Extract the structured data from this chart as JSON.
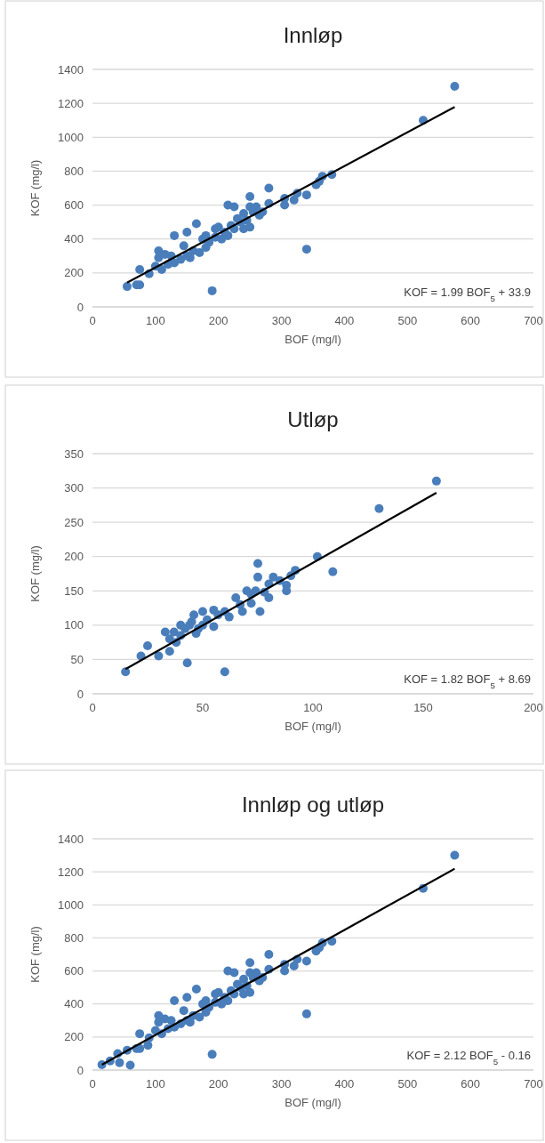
{
  "chart_data": [
    {
      "type": "scatter",
      "title": "Innløp",
      "xlabel": "BOF (mg/l)",
      "ylabel": "KOF (mg/l)",
      "xlim": [
        0,
        700
      ],
      "xticks": [
        0,
        100,
        200,
        300,
        400,
        500,
        600,
        700
      ],
      "ylim": [
        0,
        1400
      ],
      "yticks": [
        0,
        200,
        400,
        600,
        800,
        1000,
        1200,
        1400
      ],
      "grid": "y",
      "series": [
        {
          "color": "#4a7ebb",
          "marker": "circle",
          "x": [
            55,
            70,
            75,
            75,
            90,
            100,
            105,
            105,
            110,
            115,
            120,
            125,
            130,
            130,
            140,
            145,
            150,
            150,
            155,
            160,
            165,
            170,
            175,
            180,
            180,
            185,
            190,
            195,
            195,
            200,
            205,
            210,
            215,
            215,
            220,
            225,
            225,
            230,
            235,
            240,
            240,
            245,
            250,
            250,
            250,
            255,
            260,
            265,
            270,
            280,
            280,
            305,
            305,
            320,
            325,
            340,
            340,
            355,
            360,
            365,
            380,
            525,
            575
          ],
          "values": [
            120,
            130,
            220,
            130,
            195,
            240,
            290,
            330,
            220,
            310,
            250,
            300,
            420,
            260,
            280,
            360,
            300,
            440,
            290,
            330,
            490,
            320,
            400,
            350,
            420,
            380,
            95,
            460,
            410,
            470,
            400,
            440,
            600,
            420,
            480,
            590,
            460,
            520,
            500,
            550,
            460,
            510,
            650,
            590,
            470,
            560,
            590,
            540,
            560,
            700,
            610,
            640,
            600,
            630,
            670,
            660,
            340,
            720,
            740,
            770,
            780,
            1100,
            1300
          ]
        },
        {
          "type": "line",
          "color": "#000000",
          "marker": "none",
          "x": [
            55,
            575
          ],
          "values": [
            143,
            1178
          ]
        }
      ],
      "annotations": [
        "KOF = 1.99 BOF$_{5}$ + 33.9"
      ]
    },
    {
      "type": "scatter",
      "title": "Utløp",
      "xlabel": "BOF (mg/l)",
      "ylabel": "KOF (mg/l)",
      "xlim": [
        0,
        200
      ],
      "xticks": [
        0,
        50,
        100,
        150,
        200
      ],
      "ylim": [
        0,
        350
      ],
      "yticks": [
        0,
        50,
        100,
        150,
        200,
        250,
        300,
        350
      ],
      "grid": "y",
      "series": [
        {
          "color": "#4a7ebb",
          "marker": "circle",
          "x": [
            15,
            22,
            25,
            30,
            33,
            35,
            35,
            37,
            38,
            40,
            40,
            42,
            43,
            44,
            45,
            46,
            47,
            48,
            50,
            50,
            52,
            55,
            55,
            57,
            60,
            60,
            62,
            65,
            67,
            68,
            70,
            72,
            72,
            74,
            75,
            75,
            76,
            78,
            80,
            80,
            82,
            85,
            88,
            88,
            90,
            92,
            102,
            109,
            130,
            156
          ],
          "values": [
            32,
            55,
            70,
            55,
            90,
            80,
            62,
            90,
            75,
            100,
            85,
            95,
            45,
            100,
            105,
            115,
            88,
            95,
            120,
            100,
            108,
            98,
            122,
            115,
            32,
            120,
            112,
            140,
            130,
            120,
            150,
            132,
            145,
            150,
            170,
            190,
            120,
            148,
            160,
            140,
            170,
            165,
            150,
            158,
            172,
            180,
            200,
            178,
            270,
            310
          ]
        },
        {
          "type": "line",
          "color": "#000000",
          "marker": "none",
          "x": [
            15,
            156
          ],
          "values": [
            36,
            293
          ]
        }
      ],
      "annotations": [
        "KOF = 1.82 BOF$_{5}$ + 8.69"
      ]
    },
    {
      "type": "scatter",
      "title": "Innløp og utløp",
      "xlabel": "BOF (mg/l)",
      "ylabel": "KOF (mg/l)",
      "xlim": [
        0,
        700
      ],
      "xticks": [
        0,
        100,
        200,
        300,
        400,
        500,
        600,
        700
      ],
      "ylim": [
        0,
        1400
      ],
      "yticks": [
        0,
        200,
        400,
        600,
        800,
        1000,
        1200,
        1400
      ],
      "grid": "y",
      "series": [
        {
          "color": "#4a7ebb",
          "marker": "circle",
          "x": [
            15,
            28,
            43,
            40,
            60,
            88,
            55,
            70,
            75,
            75,
            90,
            100,
            105,
            105,
            110,
            115,
            120,
            125,
            130,
            130,
            140,
            145,
            150,
            150,
            155,
            160,
            165,
            170,
            175,
            180,
            180,
            185,
            190,
            195,
            195,
            200,
            205,
            210,
            215,
            215,
            220,
            225,
            225,
            230,
            235,
            240,
            240,
            245,
            250,
            250,
            250,
            255,
            260,
            265,
            270,
            280,
            280,
            305,
            305,
            320,
            325,
            340,
            340,
            355,
            360,
            365,
            380,
            525,
            575
          ],
          "values": [
            32,
            55,
            45,
            100,
            30,
            150,
            120,
            130,
            220,
            130,
            195,
            240,
            290,
            330,
            220,
            310,
            250,
            300,
            420,
            260,
            280,
            360,
            300,
            440,
            290,
            330,
            490,
            320,
            400,
            350,
            420,
            380,
            95,
            460,
            410,
            470,
            400,
            440,
            600,
            420,
            480,
            590,
            460,
            520,
            500,
            550,
            460,
            510,
            650,
            590,
            470,
            560,
            590,
            540,
            560,
            700,
            610,
            640,
            600,
            630,
            670,
            660,
            340,
            720,
            740,
            770,
            780,
            1100,
            1300
          ]
        },
        {
          "type": "line",
          "color": "#000000",
          "marker": "none",
          "x": [
            15,
            575
          ],
          "values": [
            32,
            1219
          ]
        }
      ],
      "annotations": [
        "KOF = 2.12 BOF$_{5}$ - 0.16"
      ]
    }
  ]
}
